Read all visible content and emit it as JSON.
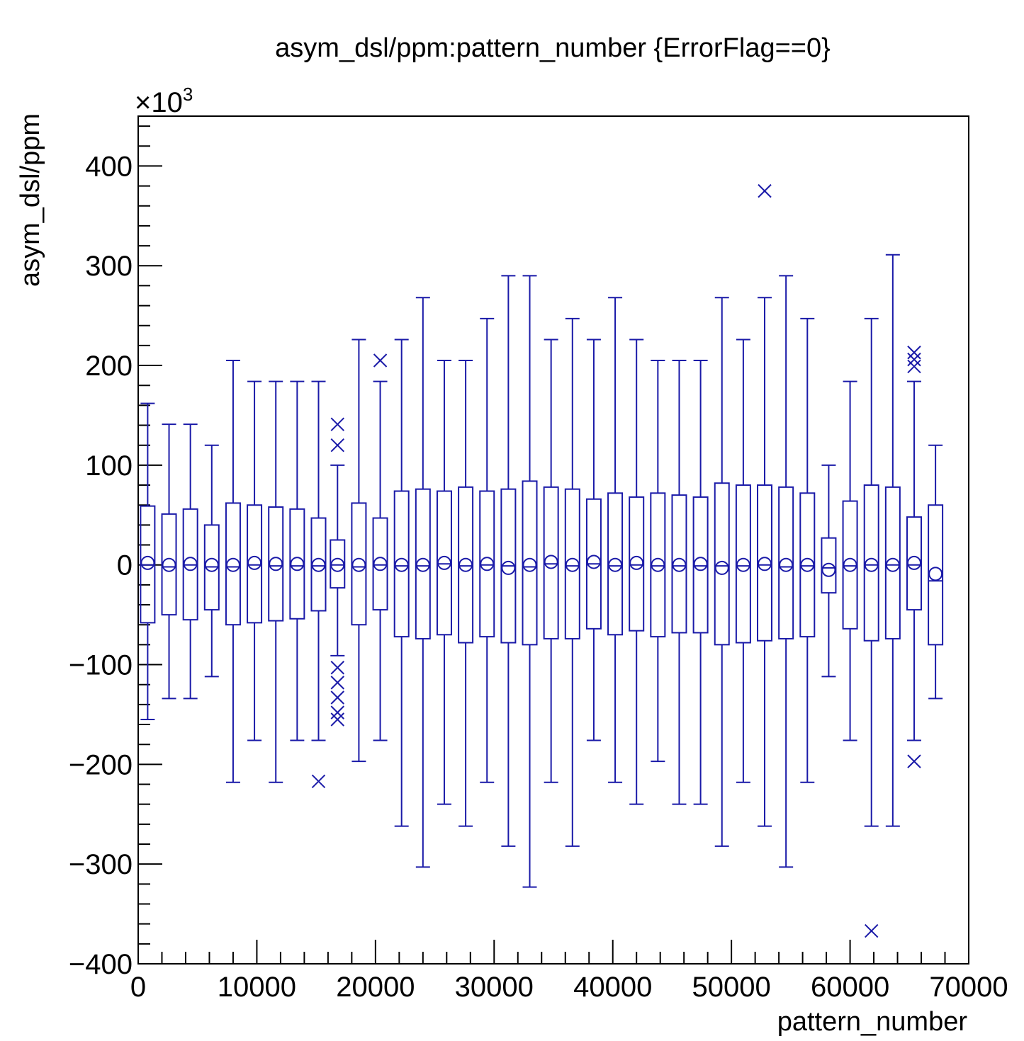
{
  "chart_data": {
    "type": "box",
    "title": "asym_dsl/ppm:pattern_number {ErrorFlag==0}",
    "xlabel": "pattern_number",
    "ylabel": "asym_dsl/ppm",
    "y_multiplier": "×10",
    "y_multiplier_exp": "3",
    "xlim": [
      0,
      70000
    ],
    "ylim": [
      -400,
      450
    ],
    "x_ticks": [
      0,
      10000,
      20000,
      30000,
      40000,
      50000,
      60000,
      70000
    ],
    "x_tick_labels": [
      "0",
      "10000",
      "20000",
      "30000",
      "40000",
      "50000",
      "60000",
      "70000"
    ],
    "y_ticks": [
      -400,
      -300,
      -200,
      -100,
      0,
      100,
      200,
      300,
      400
    ],
    "y_tick_labels": [
      "−400",
      "−300",
      "−200",
      "−100",
      "0",
      "100",
      "200",
      "300",
      "400"
    ],
    "color": "#1a1aa8",
    "grid": false,
    "boxes": [
      {
        "x": 800,
        "wlo": -155,
        "q1": -58,
        "median": 0,
        "mean": 2,
        "q3": 59,
        "whi": 162,
        "outliers": []
      },
      {
        "x": 2600,
        "wlo": -134,
        "q1": -50,
        "median": -2,
        "mean": 0,
        "q3": 51,
        "whi": 141,
        "outliers": []
      },
      {
        "x": 4400,
        "wlo": -134,
        "q1": -55,
        "median": 0,
        "mean": 1,
        "q3": 56,
        "whi": 141,
        "outliers": []
      },
      {
        "x": 6200,
        "wlo": -112,
        "q1": -45,
        "median": -2,
        "mean": 0,
        "q3": 40,
        "whi": 120,
        "outliers": []
      },
      {
        "x": 8000,
        "wlo": -218,
        "q1": -60,
        "median": -2,
        "mean": 0,
        "q3": 62,
        "whi": 205,
        "outliers": []
      },
      {
        "x": 9800,
        "wlo": -176,
        "q1": -58,
        "median": 0,
        "mean": 2,
        "q3": 60,
        "whi": 184,
        "outliers": []
      },
      {
        "x": 11600,
        "wlo": -218,
        "q1": -56,
        "median": -1,
        "mean": 1,
        "q3": 58,
        "whi": 184,
        "outliers": []
      },
      {
        "x": 13400,
        "wlo": -176,
        "q1": -54,
        "median": -1,
        "mean": 1,
        "q3": 56,
        "whi": 184,
        "outliers": []
      },
      {
        "x": 15200,
        "wlo": -176,
        "q1": -46,
        "median": -1,
        "mean": 0,
        "q3": 47,
        "whi": 184,
        "outliers": [
          -217
        ]
      },
      {
        "x": 16800,
        "wlo": -91,
        "q1": -23,
        "median": 0,
        "mean": 0,
        "q3": 25,
        "whi": 100,
        "outliers": [
          141,
          120,
          -103,
          -118,
          -133,
          -148,
          -155
        ]
      },
      {
        "x": 18600,
        "wlo": -197,
        "q1": -60,
        "median": -2,
        "mean": 0,
        "q3": 62,
        "whi": 226,
        "outliers": []
      },
      {
        "x": 20400,
        "wlo": -176,
        "q1": -45,
        "median": 0,
        "mean": 1,
        "q3": 47,
        "whi": 184,
        "outliers": [
          205
        ]
      },
      {
        "x": 22200,
        "wlo": -262,
        "q1": -72,
        "median": -1,
        "mean": 0,
        "q3": 74,
        "whi": 226,
        "outliers": []
      },
      {
        "x": 24000,
        "wlo": -303,
        "q1": -74,
        "median": -1,
        "mean": 0,
        "q3": 76,
        "whi": 268,
        "outliers": []
      },
      {
        "x": 25800,
        "wlo": -240,
        "q1": -70,
        "median": 1,
        "mean": 2,
        "q3": 74,
        "whi": 205,
        "outliers": []
      },
      {
        "x": 27600,
        "wlo": -262,
        "q1": -78,
        "median": -1,
        "mean": 0,
        "q3": 78,
        "whi": 205,
        "outliers": []
      },
      {
        "x": 29400,
        "wlo": -218,
        "q1": -72,
        "median": 0,
        "mean": 1,
        "q3": 74,
        "whi": 247,
        "outliers": []
      },
      {
        "x": 31200,
        "wlo": -282,
        "q1": -78,
        "median": -1,
        "mean": -3,
        "q3": 76,
        "whi": 290,
        "outliers": []
      },
      {
        "x": 33000,
        "wlo": -323,
        "q1": -80,
        "median": -2,
        "mean": 0,
        "q3": 84,
        "whi": 290,
        "outliers": []
      },
      {
        "x": 34800,
        "wlo": -218,
        "q1": -74,
        "median": 1,
        "mean": 3,
        "q3": 78,
        "whi": 226,
        "outliers": []
      },
      {
        "x": 36600,
        "wlo": -282,
        "q1": -74,
        "median": -1,
        "mean": 0,
        "q3": 76,
        "whi": 247,
        "outliers": []
      },
      {
        "x": 38400,
        "wlo": -176,
        "q1": -64,
        "median": 1,
        "mean": 3,
        "q3": 66,
        "whi": 226,
        "outliers": []
      },
      {
        "x": 40200,
        "wlo": -218,
        "q1": -70,
        "median": -1,
        "mean": 0,
        "q3": 72,
        "whi": 268,
        "outliers": []
      },
      {
        "x": 42000,
        "wlo": -240,
        "q1": -66,
        "median": 0,
        "mean": 2,
        "q3": 68,
        "whi": 226,
        "outliers": []
      },
      {
        "x": 43800,
        "wlo": -197,
        "q1": -72,
        "median": -1,
        "mean": 0,
        "q3": 72,
        "whi": 205,
        "outliers": []
      },
      {
        "x": 45600,
        "wlo": -240,
        "q1": -68,
        "median": -1,
        "mean": 0,
        "q3": 70,
        "whi": 205,
        "outliers": []
      },
      {
        "x": 47400,
        "wlo": -240,
        "q1": -68,
        "median": -1,
        "mean": 1,
        "q3": 68,
        "whi": 205,
        "outliers": []
      },
      {
        "x": 49200,
        "wlo": -282,
        "q1": -80,
        "median": -1,
        "mean": -3,
        "q3": 82,
        "whi": 268,
        "outliers": []
      },
      {
        "x": 51000,
        "wlo": -218,
        "q1": -78,
        "median": -1,
        "mean": 0,
        "q3": 80,
        "whi": 226,
        "outliers": []
      },
      {
        "x": 52800,
        "wlo": -262,
        "q1": -76,
        "median": 0,
        "mean": 1,
        "q3": 80,
        "whi": 268,
        "outliers": [
          375
        ]
      },
      {
        "x": 54600,
        "wlo": -303,
        "q1": -74,
        "median": -2,
        "mean": 0,
        "q3": 78,
        "whi": 290,
        "outliers": []
      },
      {
        "x": 56400,
        "wlo": -218,
        "q1": -72,
        "median": -1,
        "mean": 0,
        "q3": 72,
        "whi": 247,
        "outliers": []
      },
      {
        "x": 58200,
        "wlo": -112,
        "q1": -28,
        "median": -3,
        "mean": -5,
        "q3": 27,
        "whi": 100,
        "outliers": []
      },
      {
        "x": 60000,
        "wlo": -176,
        "q1": -64,
        "median": -1,
        "mean": 0,
        "q3": 64,
        "whi": 184,
        "outliers": []
      },
      {
        "x": 61800,
        "wlo": -262,
        "q1": -76,
        "median": 0,
        "mean": 0,
        "q3": 80,
        "whi": 247,
        "outliers": [
          -367
        ]
      },
      {
        "x": 63600,
        "wlo": -262,
        "q1": -74,
        "median": 0,
        "mean": 0,
        "q3": 78,
        "whi": 311,
        "outliers": []
      },
      {
        "x": 65400,
        "wlo": -176,
        "q1": -45,
        "median": 0,
        "mean": 2,
        "q3": 48,
        "whi": 184,
        "outliers": [
          213,
          206,
          199,
          -197
        ]
      },
      {
        "x": 67200,
        "wlo": -134,
        "q1": -80,
        "median": -16,
        "mean": -9,
        "q3": 60,
        "whi": 120,
        "outliers": []
      }
    ]
  }
}
